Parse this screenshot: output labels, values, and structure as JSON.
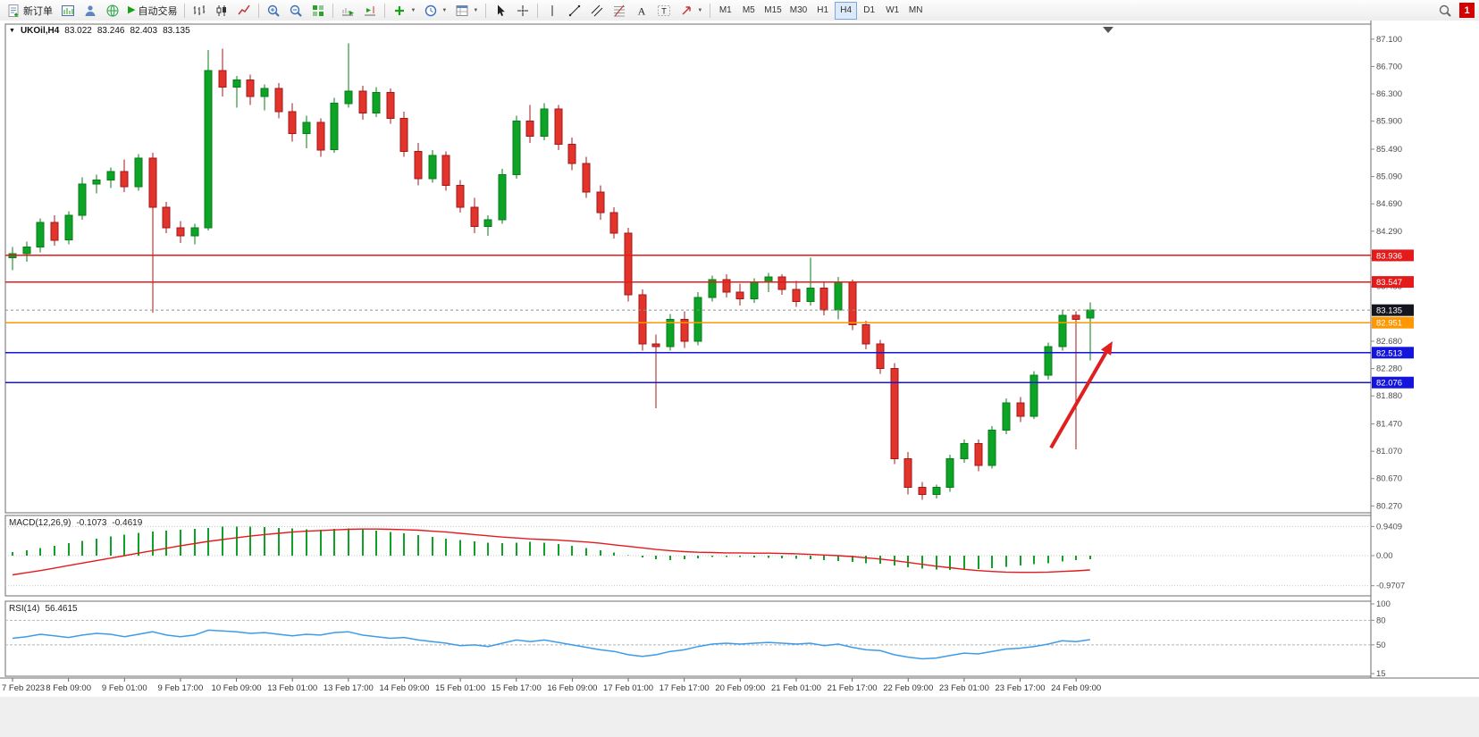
{
  "toolbar": {
    "new_order": "新订单",
    "auto_trading": "自动交易",
    "timeframes": [
      "M1",
      "M5",
      "M15",
      "M30",
      "H1",
      "H4",
      "D1",
      "W1",
      "MN"
    ],
    "active_timeframe": "H4",
    "notification_badge": "1"
  },
  "chart_header": {
    "symbol_period": "UKOil,H4",
    "open": "83.022",
    "high": "83.246",
    "low": "82.403",
    "close": "83.135"
  },
  "macd_panel": {
    "label": "MACD(12,26,9)",
    "main_value": "-0.1073",
    "signal_value": "-0.4619",
    "scale_labels": [
      "0.9409",
      "0.00",
      "-0.9707"
    ]
  },
  "rsi_panel": {
    "label": "RSI(14)",
    "value": "56.4615",
    "scale_labels": [
      "100",
      "80",
      "50",
      "15"
    ],
    "dashed_levels": [
      "80",
      "50"
    ]
  },
  "price_axis_labels": [
    "87.100",
    "86.700",
    "86.300",
    "85.900",
    "85.490",
    "85.090",
    "84.690",
    "84.290",
    "83.890",
    "83.485",
    "82.680",
    "82.280",
    "81.880",
    "81.470",
    "81.070",
    "80.670",
    "80.270"
  ],
  "time_axis_labels": [
    "7 Feb 2023",
    "8 Feb 09:00",
    "9 Feb 01:00",
    "9 Feb 17:00",
    "10 Feb 09:00",
    "13 Feb 01:00",
    "13 Feb 17:00",
    "14 Feb 09:00",
    "15 Feb 01:00",
    "15 Feb 17:00",
    "16 Feb 09:00",
    "17 Feb 01:00",
    "17 Feb 17:00",
    "20 Feb 09:00",
    "21 Feb 01:00",
    "21 Feb 17:00",
    "22 Feb 09:00",
    "23 Feb 01:00",
    "23 Feb 17:00",
    "24 Feb 09:00"
  ],
  "hlines": [
    {
      "price": 83.936,
      "label": "83.936",
      "color": "#e31b1b",
      "type": "resistance"
    },
    {
      "price": 83.547,
      "label": "83.547",
      "color": "#e31b1b",
      "type": "resistance"
    },
    {
      "price": 82.951,
      "label": "82.951",
      "color": "#ff9800",
      "type": "pivot"
    },
    {
      "price": 82.513,
      "label": "82.513",
      "color": "#1414dc",
      "type": "support"
    },
    {
      "price": 82.076,
      "label": "82.076",
      "color": "#1414dc",
      "type": "support"
    }
  ],
  "current_price": {
    "price": 83.135,
    "label": "83.135",
    "badge_color": "#15151f"
  },
  "colors": {
    "up": "#0ca327",
    "up_border": "#067d16",
    "down": "#e3342b",
    "down_border": "#a01818",
    "macd_hist": "#0ca327",
    "macd_signal": "#e31b1b",
    "rsi_line": "#3e9be9",
    "annotation": "#e01f1f"
  },
  "chart_data": {
    "type": "candlestick",
    "symbol": "UKOil",
    "timeframe": "H4",
    "title": "UKOil,H4 83.022 83.246 82.403 83.135",
    "x_label_every": 4,
    "price_range": {
      "min": 80.17,
      "max": 87.32
    },
    "candles_ohlc": [
      [
        83.9,
        84.06,
        83.72,
        83.96
      ],
      [
        83.96,
        84.14,
        83.84,
        84.06
      ],
      [
        84.06,
        84.48,
        83.98,
        84.42
      ],
      [
        84.42,
        84.52,
        84.08,
        84.16
      ],
      [
        84.16,
        84.58,
        84.1,
        84.52
      ],
      [
        84.52,
        85.08,
        84.46,
        84.98
      ],
      [
        84.98,
        85.12,
        84.84,
        85.04
      ],
      [
        85.04,
        85.22,
        84.92,
        85.16
      ],
      [
        85.16,
        85.34,
        84.86,
        84.94
      ],
      [
        84.94,
        85.42,
        84.88,
        85.36
      ],
      [
        85.36,
        85.44,
        83.1,
        84.64
      ],
      [
        84.64,
        84.72,
        84.26,
        84.34
      ],
      [
        84.34,
        84.44,
        84.12,
        84.22
      ],
      [
        84.22,
        84.4,
        84.1,
        84.34
      ],
      [
        84.34,
        86.94,
        84.3,
        86.64
      ],
      [
        86.64,
        86.96,
        86.26,
        86.4
      ],
      [
        86.4,
        86.56,
        86.1,
        86.5
      ],
      [
        86.5,
        86.58,
        86.14,
        86.26
      ],
      [
        86.26,
        86.44,
        86.06,
        86.38
      ],
      [
        86.38,
        86.46,
        85.94,
        86.04
      ],
      [
        86.04,
        86.16,
        85.6,
        85.72
      ],
      [
        85.72,
        85.98,
        85.5,
        85.88
      ],
      [
        85.88,
        85.94,
        85.38,
        85.48
      ],
      [
        85.48,
        86.24,
        85.44,
        86.16
      ],
      [
        86.16,
        87.04,
        86.1,
        86.34
      ],
      [
        86.34,
        86.42,
        85.92,
        86.02
      ],
      [
        86.02,
        86.4,
        85.96,
        86.32
      ],
      [
        86.32,
        86.38,
        85.86,
        85.94
      ],
      [
        85.94,
        86.04,
        85.38,
        85.46
      ],
      [
        85.46,
        85.58,
        84.96,
        85.06
      ],
      [
        85.06,
        85.48,
        85.0,
        85.4
      ],
      [
        85.4,
        85.46,
        84.88,
        84.96
      ],
      [
        84.96,
        85.04,
        84.56,
        84.64
      ],
      [
        84.64,
        84.78,
        84.26,
        84.36
      ],
      [
        84.36,
        84.52,
        84.22,
        84.46
      ],
      [
        84.46,
        85.2,
        84.4,
        85.12
      ],
      [
        85.12,
        85.98,
        85.06,
        85.9
      ],
      [
        85.9,
        86.14,
        85.58,
        85.68
      ],
      [
        85.68,
        86.16,
        85.62,
        86.08
      ],
      [
        86.08,
        86.14,
        85.48,
        85.56
      ],
      [
        85.56,
        85.66,
        85.18,
        85.28
      ],
      [
        85.28,
        85.38,
        84.78,
        84.86
      ],
      [
        84.86,
        84.96,
        84.46,
        84.56
      ],
      [
        84.56,
        84.64,
        84.18,
        84.26
      ],
      [
        84.26,
        84.34,
        83.26,
        83.36
      ],
      [
        83.36,
        83.44,
        82.54,
        82.64
      ],
      [
        82.64,
        82.78,
        81.7,
        82.6
      ],
      [
        82.6,
        83.08,
        82.54,
        83.0
      ],
      [
        83.0,
        83.12,
        82.58,
        82.68
      ],
      [
        82.68,
        83.4,
        82.62,
        83.32
      ],
      [
        83.32,
        83.64,
        83.26,
        83.58
      ],
      [
        83.58,
        83.66,
        83.32,
        83.4
      ],
      [
        83.4,
        83.52,
        83.2,
        83.3
      ],
      [
        83.3,
        83.6,
        83.24,
        83.54
      ],
      [
        83.54,
        83.68,
        83.4,
        83.62
      ],
      [
        83.62,
        83.66,
        83.36,
        83.44
      ],
      [
        83.44,
        83.56,
        83.18,
        83.26
      ],
      [
        83.26,
        83.9,
        83.2,
        83.46
      ],
      [
        83.46,
        83.54,
        83.06,
        83.14
      ],
      [
        83.14,
        83.62,
        83.0,
        83.54
      ],
      [
        83.54,
        83.58,
        82.84,
        82.92
      ],
      [
        82.92,
        82.98,
        82.56,
        82.64
      ],
      [
        82.64,
        82.7,
        82.2,
        82.28
      ],
      [
        82.28,
        82.36,
        80.88,
        80.96
      ],
      [
        80.96,
        81.06,
        80.44,
        80.54
      ],
      [
        80.54,
        80.62,
        80.36,
        80.44
      ],
      [
        80.44,
        80.58,
        80.38,
        80.54
      ],
      [
        80.54,
        81.02,
        80.48,
        80.96
      ],
      [
        80.96,
        81.24,
        80.9,
        81.18
      ],
      [
        81.18,
        81.24,
        80.78,
        80.86
      ],
      [
        80.86,
        81.44,
        80.82,
        81.38
      ],
      [
        81.38,
        81.84,
        81.32,
        81.78
      ],
      [
        81.78,
        81.86,
        81.5,
        81.58
      ],
      [
        81.58,
        82.24,
        81.54,
        82.18
      ],
      [
        82.18,
        82.66,
        82.12,
        82.6
      ],
      [
        82.6,
        83.14,
        82.54,
        83.06
      ],
      [
        83.06,
        83.12,
        81.1,
        83.0
      ],
      [
        83.02,
        83.25,
        82.4,
        83.14
      ]
    ],
    "macd": {
      "histogram": [
        0.12,
        0.18,
        0.25,
        0.32,
        0.4,
        0.48,
        0.55,
        0.62,
        0.68,
        0.74,
        0.78,
        0.8,
        0.84,
        0.87,
        0.9,
        0.93,
        0.94,
        0.93,
        0.92,
        0.9,
        0.88,
        0.85,
        0.84,
        0.86,
        0.88,
        0.85,
        0.8,
        0.76,
        0.72,
        0.66,
        0.6,
        0.55,
        0.5,
        0.46,
        0.42,
        0.4,
        0.42,
        0.44,
        0.42,
        0.38,
        0.32,
        0.25,
        0.18,
        0.1,
        0.02,
        -0.06,
        -0.12,
        -0.14,
        -0.12,
        -0.08,
        -0.05,
        -0.04,
        -0.05,
        -0.06,
        -0.07,
        -0.08,
        -0.1,
        -0.12,
        -0.15,
        -0.17,
        -0.2,
        -0.24,
        -0.26,
        -0.32,
        -0.38,
        -0.42,
        -0.45,
        -0.46,
        -0.45,
        -0.43,
        -0.4,
        -0.36,
        -0.32,
        -0.28,
        -0.24,
        -0.19,
        -0.15,
        -0.11
      ],
      "signal": [
        -0.62,
        -0.55,
        -0.48,
        -0.4,
        -0.32,
        -0.24,
        -0.16,
        -0.08,
        0.0,
        0.08,
        0.16,
        0.24,
        0.32,
        0.39,
        0.46,
        0.52,
        0.58,
        0.63,
        0.68,
        0.72,
        0.76,
        0.79,
        0.81,
        0.83,
        0.85,
        0.86,
        0.86,
        0.85,
        0.84,
        0.82,
        0.79,
        0.76,
        0.72,
        0.68,
        0.64,
        0.6,
        0.57,
        0.54,
        0.52,
        0.5,
        0.47,
        0.44,
        0.4,
        0.35,
        0.3,
        0.25,
        0.2,
        0.16,
        0.13,
        0.11,
        0.1,
        0.09,
        0.09,
        0.08,
        0.08,
        0.07,
        0.06,
        0.04,
        0.02,
        0.0,
        -0.03,
        -0.07,
        -0.11,
        -0.16,
        -0.22,
        -0.28,
        -0.34,
        -0.39,
        -0.44,
        -0.48,
        -0.51,
        -0.53,
        -0.54,
        -0.54,
        -0.53,
        -0.51,
        -0.49,
        -0.46
      ]
    },
    "rsi_values": [
      58,
      60,
      63,
      61,
      59,
      62,
      64,
      63,
      60,
      63,
      66,
      62,
      60,
      62,
      68,
      67,
      66,
      64,
      65,
      63,
      61,
      63,
      62,
      65,
      66,
      62,
      60,
      58,
      59,
      56,
      54,
      52,
      49,
      50,
      48,
      52,
      56,
      54,
      56,
      53,
      50,
      47,
      44,
      42,
      38,
      36,
      38,
      42,
      44,
      48,
      51,
      52,
      51,
      52,
      53,
      52,
      51,
      52,
      49,
      51,
      47,
      44,
      43,
      38,
      35,
      33,
      34,
      37,
      40,
      39,
      42,
      45,
      46,
      48,
      51,
      55,
      54,
      56.46
    ],
    "arrow_annotation": {
      "from_index": 74.2,
      "from_price": 81.12,
      "to_index": 78.6,
      "to_price": 82.68
    }
  }
}
